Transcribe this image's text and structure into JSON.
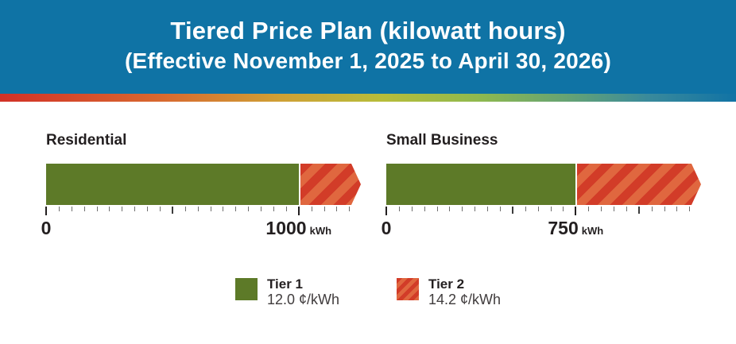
{
  "header": {
    "title": "Tiered Price Plan (kilowatt hours)",
    "subtitle": "(Effective November 1, 2025 to April 30, 2026)",
    "background_color": "#0f73a5",
    "text_color": "#ffffff"
  },
  "colors": {
    "tier1_green": "#5d7a28",
    "tier2_red": "#d23c28",
    "tier2_red_stripe": "#e0673f",
    "text_dark": "#231f20",
    "rainbow_stops": [
      "#d23127 0%",
      "#d8692f 22%",
      "#cfa035 38%",
      "#b7bd3a 52%",
      "#8fb94e 65%",
      "#62a177 78%",
      "#3a8a9b 88%",
      "#1173a5 100%"
    ]
  },
  "chart_data": [
    {
      "type": "bar",
      "orientation": "horizontal",
      "title": "Residential",
      "unit": "kWh",
      "zero_label": "0",
      "threshold_label": "1000",
      "threshold_kwh": 1000,
      "axis": {
        "min": 0,
        "max_shown": 1240,
        "tick_step": 50,
        "medium_tick_step": 500,
        "labeled_ticks": [
          0,
          1000
        ]
      },
      "series": [
        {
          "name": "Tier 1",
          "range_kwh": [
            0,
            1000
          ],
          "price_cents_per_kwh": 12.0
        },
        {
          "name": "Tier 2",
          "starts_at_kwh": 1000,
          "open_ended": true,
          "price_cents_per_kwh": 14.2
        }
      ]
    },
    {
      "type": "bar",
      "orientation": "horizontal",
      "title": "Small Business",
      "unit": "kWh",
      "zero_label": "0",
      "threshold_label": "750",
      "threshold_kwh": 750,
      "axis": {
        "min": 0,
        "max_shown": 1240,
        "tick_step": 50,
        "medium_tick_step": 500,
        "labeled_ticks": [
          0,
          750
        ]
      },
      "series": [
        {
          "name": "Tier 1",
          "range_kwh": [
            0,
            750
          ],
          "price_cents_per_kwh": 12.0
        },
        {
          "name": "Tier 2",
          "starts_at_kwh": 750,
          "open_ended": true,
          "price_cents_per_kwh": 14.2
        }
      ]
    }
  ],
  "legend": {
    "items": [
      {
        "key": "tier1",
        "label": "Tier 1",
        "price": "12.0 ¢/kWh",
        "color": "#5d7a28",
        "swatch_style": "solid"
      },
      {
        "key": "tier2",
        "label": "Tier 2",
        "price": "14.2 ¢/kWh",
        "color": "#d23c28",
        "swatch_style": "striped"
      }
    ]
  }
}
